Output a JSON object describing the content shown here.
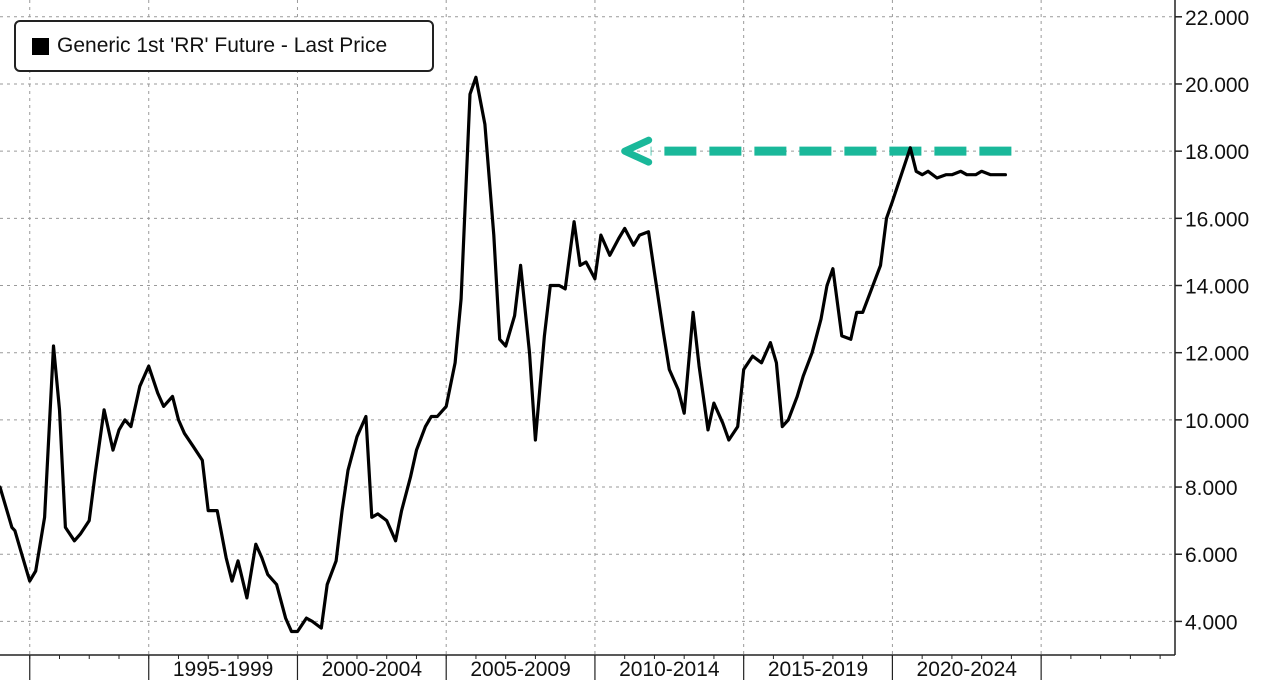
{
  "chart_data": {
    "type": "line",
    "title": "",
    "xlabel": "",
    "ylabel": "",
    "legend": {
      "placement": "top-left",
      "entries": [
        "Generic 1st 'RR' Future - Last Price"
      ]
    },
    "ylim": [
      3.0,
      22.5
    ],
    "y_ticks": [
      4.0,
      6.0,
      8.0,
      10.0,
      12.0,
      14.0,
      16.0,
      18.0,
      20.0,
      22.0
    ],
    "y_tick_labels": [
      "4.000",
      "6.000",
      "8.000",
      "10.000",
      "12.000",
      "14.000",
      "16.000",
      "18.000",
      "20.000",
      "22.000"
    ],
    "xlim": [
      1990.0,
      2029.5
    ],
    "x_gridlines": [
      1991.0,
      1995.0,
      2000.0,
      2005.0,
      2010.0,
      2015.0,
      2020.0,
      2025.0
    ],
    "x_ticks_minor": [
      1991,
      1992,
      1993,
      1994,
      1995,
      1996,
      1997,
      1998,
      1999,
      2000,
      2001,
      2002,
      2003,
      2004,
      2005,
      2006,
      2007,
      2008,
      2009,
      2010,
      2011,
      2012,
      2013,
      2014,
      2015,
      2016,
      2017,
      2018,
      2019,
      2020,
      2021,
      2022,
      2023,
      2024,
      2025,
      2026,
      2027,
      2028,
      2029
    ],
    "x_tick_labels": [
      {
        "label": "1995-1999",
        "x": 1997.5
      },
      {
        "label": "2000-2004",
        "x": 2002.5
      },
      {
        "label": "2005-2009",
        "x": 2007.5
      },
      {
        "label": "2010-2014",
        "x": 2012.5
      },
      {
        "label": "2015-2019",
        "x": 2017.5
      },
      {
        "label": "2020-2024",
        "x": 2022.5
      }
    ],
    "grid": true,
    "series": [
      {
        "name": "Generic 1st 'RR' Future - Last Price",
        "color": "#000000",
        "x": [
          1990.0,
          1990.4,
          1990.5,
          1990.7,
          1991.0,
          1991.2,
          1991.5,
          1991.8,
          1992.0,
          1992.2,
          1992.5,
          1992.7,
          1993.0,
          1993.2,
          1993.5,
          1993.8,
          1994.0,
          1994.2,
          1994.4,
          1994.7,
          1995.0,
          1995.3,
          1995.5,
          1995.8,
          1996.0,
          1996.2,
          1996.5,
          1996.8,
          1997.0,
          1997.3,
          1997.6,
          1997.8,
          1998.0,
          1998.3,
          1998.6,
          1998.8,
          1999.0,
          1999.3,
          1999.6,
          1999.8,
          2000.0,
          2000.3,
          2000.5,
          2000.8,
          2001.0,
          2001.3,
          2001.5,
          2001.7,
          2002.0,
          2002.3,
          2002.5,
          2002.7,
          2003.0,
          2003.3,
          2003.5,
          2003.8,
          2004.0,
          2004.3,
          2004.5,
          2004.7,
          2005.0,
          2005.3,
          2005.5,
          2005.8,
          2006.0,
          2006.3,
          2006.6,
          2006.8,
          2007.0,
          2007.3,
          2007.5,
          2007.8,
          2008.0,
          2008.3,
          2008.5,
          2008.8,
          2009.0,
          2009.3,
          2009.5,
          2009.7,
          2010.0,
          2010.2,
          2010.5,
          2010.8,
          2011.0,
          2011.3,
          2011.5,
          2011.8,
          2012.0,
          2012.3,
          2012.5,
          2012.8,
          2013.0,
          2013.3,
          2013.5,
          2013.8,
          2014.0,
          2014.3,
          2014.5,
          2014.8,
          2015.0,
          2015.3,
          2015.6,
          2015.9,
          2016.1,
          2016.3,
          2016.5,
          2016.8,
          2017.0,
          2017.3,
          2017.6,
          2017.8,
          2018.0,
          2018.3,
          2018.6,
          2018.8,
          2019.0,
          2019.3,
          2019.6,
          2019.8,
          2020.0,
          2020.3,
          2020.6,
          2020.8,
          2021.0,
          2021.2,
          2021.5,
          2021.8,
          2022.0,
          2022.3,
          2022.5,
          2022.8,
          2023.0,
          2023.3,
          2023.5,
          2023.8
        ],
        "values": [
          8.0,
          6.8,
          6.7,
          6.1,
          5.2,
          5.5,
          7.1,
          12.2,
          10.3,
          6.8,
          6.4,
          6.6,
          7.0,
          8.4,
          10.3,
          9.1,
          9.7,
          10.0,
          9.8,
          11.0,
          11.6,
          10.8,
          10.4,
          10.7,
          10.0,
          9.6,
          9.2,
          8.8,
          7.3,
          7.3,
          5.9,
          5.2,
          5.8,
          4.7,
          6.3,
          5.9,
          5.4,
          5.1,
          4.1,
          3.7,
          3.7,
          4.1,
          4.0,
          3.8,
          5.1,
          5.8,
          7.3,
          8.5,
          9.5,
          10.1,
          7.1,
          7.2,
          7.0,
          6.4,
          7.3,
          8.3,
          9.1,
          9.8,
          10.1,
          10.1,
          10.4,
          11.7,
          13.6,
          19.7,
          20.2,
          18.8,
          15.5,
          12.4,
          12.2,
          13.1,
          14.6,
          12.0,
          9.4,
          12.5,
          14.0,
          14.0,
          13.9,
          15.9,
          14.6,
          14.7,
          14.2,
          15.5,
          14.9,
          15.4,
          15.7,
          15.2,
          15.5,
          15.6,
          14.4,
          12.6,
          11.5,
          10.9,
          10.2,
          13.2,
          11.6,
          9.7,
          10.5,
          9.9,
          9.4,
          9.8,
          11.5,
          11.9,
          11.7,
          12.3,
          11.7,
          9.8,
          10.0,
          10.7,
          11.3,
          12.0,
          13.0,
          14.0,
          14.5,
          12.5,
          12.4,
          13.2,
          13.2,
          13.9,
          14.6,
          16.0,
          16.5,
          17.3,
          18.1,
          17.4,
          17.3,
          17.4,
          17.2,
          17.3,
          17.3,
          17.4,
          17.3,
          17.3,
          17.4,
          17.3,
          17.3,
          17.3
        ]
      }
    ],
    "annotations": [
      {
        "type": "arrow",
        "style": "dashed",
        "direction": "left",
        "color": "#1ab89a",
        "x_from": 2024.0,
        "x_to": 2011.0,
        "y": 18.0
      }
    ]
  }
}
